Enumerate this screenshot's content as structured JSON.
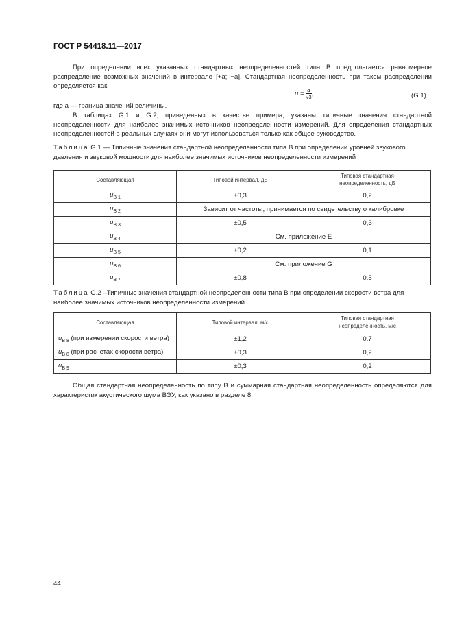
{
  "header": {
    "doc_id": "ГОСТ Р 54418.11—2017"
  },
  "intro": {
    "paragraph1": "При определении всех указанных стандартных неопределенностей типа В предполагается равномерное распределение возможных значений в интервале [+a; −a]. Стандартная неопределенность при таком распределении определяется как",
    "formula": {
      "lhs": "u =",
      "numerator": "a",
      "denominator": "√3",
      "trail": ",",
      "number": "(G.1)"
    },
    "where": "где a — граница значений величины.",
    "paragraph2": "В таблицах G.1 и G.2, приведенных в качестве примера, указаны типичные значения стандартной неопределенности для наиболее значимых источников неопределенности измерений. Для определения стандартных неопределенностей в реальных случаях они могут использоваться только как общее руководство."
  },
  "table1": {
    "caption_label": "Таблица",
    "caption_text": "G.1 — Типичные значения стандартной неопределенности типа В при определении уровней звукового давления и звуковой мощности для наиболее значимых источников неопределенности измерений",
    "headers": [
      "Составляющая",
      "Типовой интервал, дБ",
      "Типовая стандартная неопределенность, дБ"
    ],
    "rows": [
      {
        "sym": "u",
        "sub": "B 1",
        "interval": "±0,3",
        "uncert": "0,2"
      },
      {
        "sym": "u",
        "sub": "B 2",
        "merged": "Зависит от частоты, принимается по свидетельству о калибровке"
      },
      {
        "sym": "u",
        "sub": "B 3",
        "interval": "±0,5",
        "uncert": "0,3"
      },
      {
        "sym": "u",
        "sub": "B 4",
        "merged": "См. приложение Е"
      },
      {
        "sym": "u",
        "sub": "B 5",
        "interval": "±0,2",
        "uncert": "0,1"
      },
      {
        "sym": "u",
        "sub": "B 6",
        "merged": "См. приложение G"
      },
      {
        "sym": "u",
        "sub": "B 7",
        "interval": "±0,8",
        "uncert": "0,5"
      }
    ]
  },
  "table2": {
    "caption_label": "Таблица",
    "caption_text": "G.2 –Типичные значения стандартной неопределенности типа В при определении скорости ветра для наиболее значимых источников неопределенности измерений",
    "headers": [
      "Составляющая",
      "Типовой интервал, м/с",
      "Типовая стандартная неопределенность, м/с"
    ],
    "rows": [
      {
        "sym": "u",
        "sub": "B 8",
        "note": " (при измерении скорости ветра)",
        "interval": "±1,2",
        "uncert": "0,7"
      },
      {
        "sym": "u",
        "sub": "B 8",
        "note": " (при расчетах скорости ветра)",
        "interval": "±0,3",
        "uncert": "0,2"
      },
      {
        "sym": "u",
        "sub": "B 9",
        "note": "",
        "interval": "±0,3",
        "uncert": "0,2"
      }
    ]
  },
  "closing": "Общая стандартная неопределенность по типу В и суммарная стандартная неопределенность определяются для характеристик акустического шума ВЭУ, как указано в разделе 8.",
  "page_number": "44"
}
